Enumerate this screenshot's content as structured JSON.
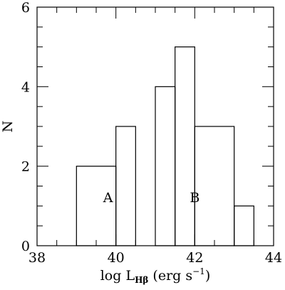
{
  "chart_data": {
    "type": "bar",
    "xlabel_prefix": "log L",
    "xlabel_sub": "Hβ",
    "xlabel_suffix": " (erg s",
    "xlabel_sup": "−1",
    "xlabel_close": ")",
    "ylabel": "N",
    "xlim": [
      38,
      44
    ],
    "ylim": [
      0,
      6
    ],
    "xticks_major": [
      38,
      40,
      42,
      44
    ],
    "yticks_major": [
      0,
      2,
      4,
      6
    ],
    "minor_step_x": 0.5,
    "minor_step_y": 0.5,
    "grid": false,
    "groups": [
      {
        "label": "A",
        "label_x": 39.8,
        "label_y": 1.1,
        "bins": [
          {
            "x0": 39.0,
            "x1": 40.0,
            "value": 2
          },
          {
            "x0": 40.0,
            "x1": 40.5,
            "value": 3
          }
        ]
      },
      {
        "label": "B",
        "label_x": 42.0,
        "label_y": 1.1,
        "bins": [
          {
            "x0": 41.0,
            "x1": 41.5,
            "value": 4
          },
          {
            "x0": 41.5,
            "x1": 42.0,
            "value": 5
          },
          {
            "x0": 42.0,
            "x1": 43.0,
            "value": 3
          },
          {
            "x0": 43.0,
            "x1": 43.5,
            "value": 1
          }
        ]
      }
    ]
  }
}
